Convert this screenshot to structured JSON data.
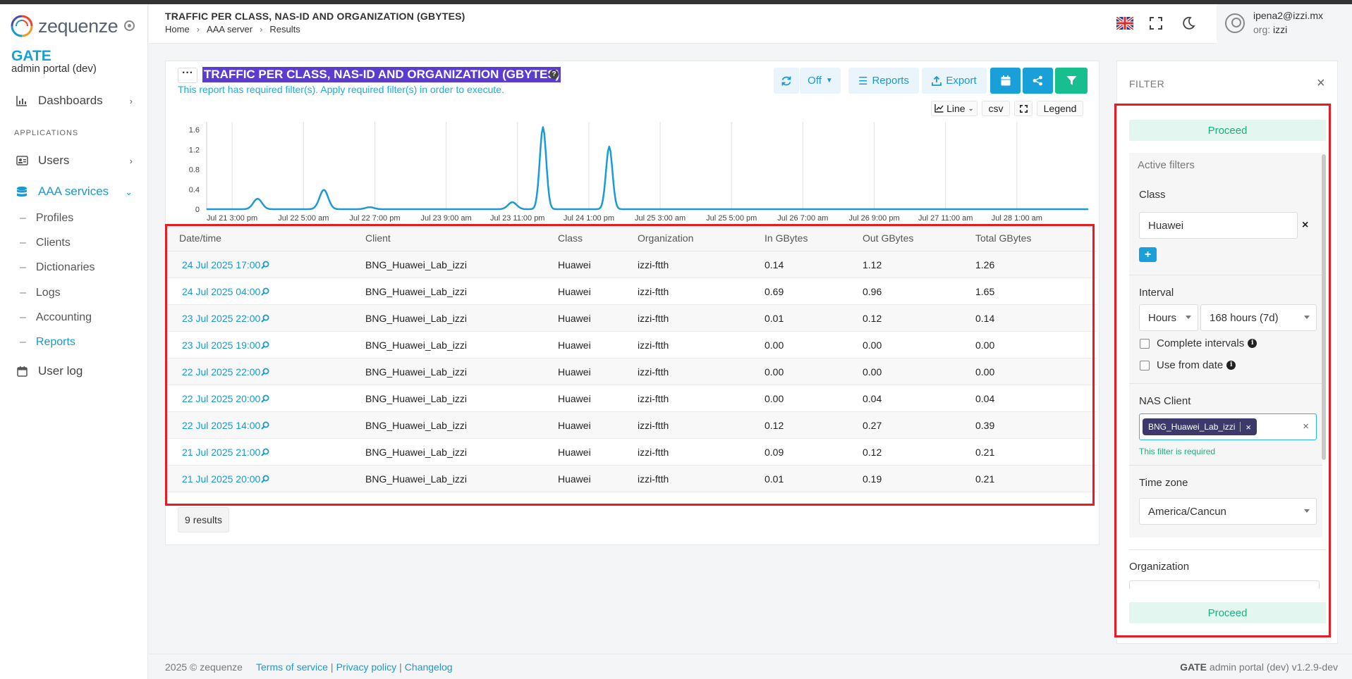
{
  "app": {
    "logo_text": "zequenze",
    "brand": "GATE",
    "brand_sub": "admin portal (dev)"
  },
  "sidebar": {
    "dashboards": "Dashboards",
    "section_label": "APPLICATIONS",
    "users": "Users",
    "aaa_services": "AAA services",
    "sub_items": [
      "Profiles",
      "Clients",
      "Dictionaries",
      "Logs",
      "Accounting",
      "Reports"
    ],
    "user_log": "User log"
  },
  "header": {
    "title": "TRAFFIC PER CLASS, NAS-ID AND ORGANIZATION (GBYTES)",
    "breadcrumbs": [
      "Home",
      "AAA server",
      "Results"
    ],
    "user_email": "ipena2@izzi.mx",
    "org_label": "org:",
    "org_value": "izzi"
  },
  "report": {
    "title": "TRAFFIC PER CLASS, NAS-ID AND ORGANIZATION (GBYTES)",
    "required_note": "This report has required filter(s). Apply required filter(s) in order to execute.",
    "refresh_value": "Off",
    "reports_label": "Reports",
    "export_label": "Export",
    "chart_type": "Line",
    "csv_label": "csv",
    "legend_label": "Legend",
    "results_count": "9 results"
  },
  "chart_data": {
    "type": "line",
    "y_ticks": [
      "0",
      "0.4",
      "0.8",
      "1.2",
      "1.6"
    ],
    "ylim": [
      0,
      1.7
    ],
    "x_ticks": [
      "Jul 21 3:00 pm",
      "Jul 22 5:00 am",
      "Jul 22 7:00 pm",
      "Jul 23 9:00 am",
      "Jul 23 11:00 pm",
      "Jul 24 1:00 pm",
      "Jul 25 3:00 am",
      "Jul 25 5:00 pm",
      "Jul 26 7:00 am",
      "Jul 26 9:00 pm",
      "Jul 27 11:00 am",
      "Jul 28 1:00 am"
    ],
    "x_hours_from_start": [
      0,
      14,
      28,
      42,
      56,
      70,
      84,
      98,
      112,
      126,
      140,
      154
    ],
    "x_range_hours": [
      -5,
      168
    ],
    "series": [
      {
        "color": "#1a9ad6",
        "points_hours": [
          -5,
          5,
          18,
          27,
          55,
          61,
          74
        ],
        "values": [
          0,
          0.21,
          0.39,
          0.04,
          0.14,
          1.65,
          1.26
        ]
      }
    ]
  },
  "table": {
    "columns": [
      "Date/time",
      "Client",
      "Class",
      "Organization",
      "In GBytes",
      "Out GBytes",
      "Total GBytes"
    ],
    "rows": [
      [
        "24 Jul 2025 17:00",
        "BNG_Huawei_Lab_izzi",
        "Huawei",
        "izzi-ftth",
        "0.14",
        "1.12",
        "1.26"
      ],
      [
        "24 Jul 2025 04:00",
        "BNG_Huawei_Lab_izzi",
        "Huawei",
        "izzi-ftth",
        "0.69",
        "0.96",
        "1.65"
      ],
      [
        "23 Jul 2025 22:00",
        "BNG_Huawei_Lab_izzi",
        "Huawei",
        "izzi-ftth",
        "0.01",
        "0.12",
        "0.14"
      ],
      [
        "23 Jul 2025 19:00",
        "BNG_Huawei_Lab_izzi",
        "Huawei",
        "izzi-ftth",
        "0.00",
        "0.00",
        "0.00"
      ],
      [
        "22 Jul 2025 22:00",
        "BNG_Huawei_Lab_izzi",
        "Huawei",
        "izzi-ftth",
        "0.00",
        "0.00",
        "0.00"
      ],
      [
        "22 Jul 2025 20:00",
        "BNG_Huawei_Lab_izzi",
        "Huawei",
        "izzi-ftth",
        "0.00",
        "0.04",
        "0.04"
      ],
      [
        "22 Jul 2025 14:00",
        "BNG_Huawei_Lab_izzi",
        "Huawei",
        "izzi-ftth",
        "0.12",
        "0.27",
        "0.39"
      ],
      [
        "21 Jul 2025 21:00",
        "BNG_Huawei_Lab_izzi",
        "Huawei",
        "izzi-ftth",
        "0.09",
        "0.12",
        "0.21"
      ],
      [
        "21 Jul 2025 20:00",
        "BNG_Huawei_Lab_izzi",
        "Huawei",
        "izzi-ftth",
        "0.01",
        "0.19",
        "0.21"
      ]
    ]
  },
  "filter": {
    "title": "FILTER",
    "proceed_label": "Proceed",
    "active_filters": "Active filters",
    "class_label": "Class",
    "class_value": "Huawei",
    "add_label": "+",
    "interval_label": "Interval",
    "interval_unit": "Hours",
    "interval_value": "168 hours (7d)",
    "complete_intervals": "Complete intervals",
    "use_from_date": "Use from date",
    "nas_client_label": "NAS Client",
    "nas_client_tag": "BNG_Huawei_Lab_izzi",
    "required_msg": "This filter is required",
    "timezone_label": "Time zone",
    "timezone_value": "America/Cancun",
    "organization_label": "Organization"
  },
  "footer": {
    "copyright": "2025 © zequenze",
    "terms": "Terms of service",
    "privacy": "Privacy policy",
    "changelog": "Changelog",
    "version_brand": "GATE",
    "version_text": "admin portal (dev) v1.2.9-dev"
  },
  "colors": {
    "accent_blue": "#1a99cd",
    "green": "#17bf8f",
    "highlight_purple": "#5c3ccf",
    "annotation_red": "#e51c23"
  }
}
